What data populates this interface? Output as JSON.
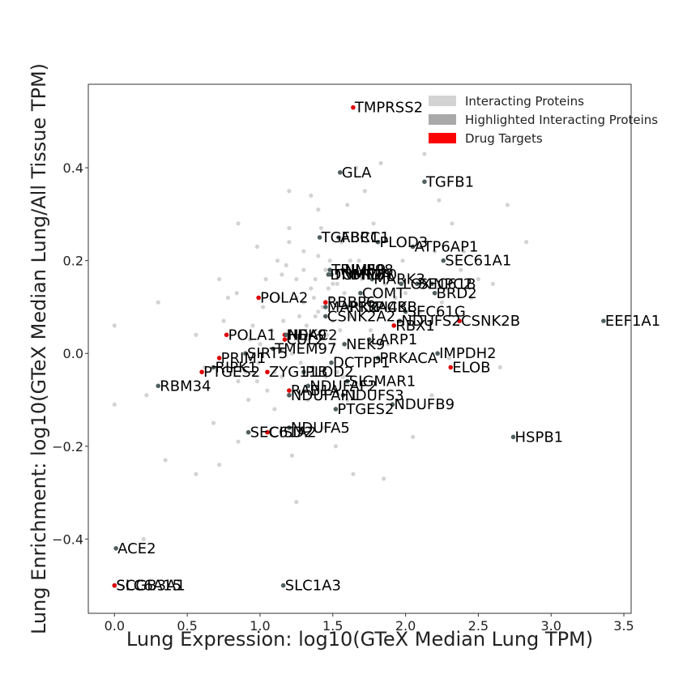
{
  "chart_data": {
    "type": "scatter",
    "title": "",
    "xlabel": "Lung Expression: log10(GTeX Median Lung TPM)",
    "ylabel": "Lung Enrichment: log10(GTeX Median Lung/All Tissue TPM)",
    "xlim": [
      -0.18,
      3.55
    ],
    "ylim": [
      -0.56,
      0.58
    ],
    "xticks": [
      "0.0",
      "0.5",
      "1.0",
      "1.5",
      "2.0",
      "2.5",
      "3.0",
      "3.5"
    ],
    "xtick_values": [
      0,
      0.5,
      1.0,
      1.5,
      2.0,
      2.5,
      3.0,
      3.5
    ],
    "yticks": [
      "−0.4",
      "−0.2",
      "0.0",
      "0.2",
      "0.4"
    ],
    "ytick_values": [
      -0.4,
      -0.2,
      0.0,
      0.2,
      0.4
    ],
    "grid": false,
    "legend_position": "top-right",
    "legend": [
      {
        "label": "Interacting Proteins",
        "color": "#d3d3d3"
      },
      {
        "label": "Highlighted Interacting Proteins",
        "color": "#a9a9a9"
      },
      {
        "label": "Drug Targets",
        "color": "#ff0000"
      }
    ],
    "colors": {
      "background": "#d3d3d3",
      "highlighted": "#506060",
      "drug": "#e00000"
    },
    "background_points": [
      [
        0.0,
        0.06
      ],
      [
        0.0,
        -0.11
      ],
      [
        0.3,
        0.11
      ],
      [
        0.22,
        -0.09
      ],
      [
        0.35,
        -0.23
      ],
      [
        0.2,
        -0.4
      ],
      [
        0.72,
        0.16
      ],
      [
        0.75,
        0.07
      ],
      [
        0.56,
        0.04
      ],
      [
        0.62,
        -0.03
      ],
      [
        0.68,
        -0.15
      ],
      [
        0.72,
        -0.24
      ],
      [
        0.56,
        -0.26
      ],
      [
        0.85,
        -0.19
      ],
      [
        0.85,
        -0.06
      ],
      [
        0.84,
        0.13
      ],
      [
        0.85,
        0.28
      ],
      [
        0.92,
        -0.1
      ],
      [
        0.95,
        0.06
      ],
      [
        0.98,
        -0.06
      ],
      [
        0.99,
        -0.02
      ],
      [
        1.0,
        0.02
      ],
      [
        1.02,
        0.1
      ],
      [
        1.04,
        0.16
      ],
      [
        1.05,
        -0.08
      ],
      [
        1.08,
        0.05
      ],
      [
        1.1,
        -0.12
      ],
      [
        1.12,
        0.2
      ],
      [
        1.13,
        0.12
      ],
      [
        1.15,
        0.01
      ],
      [
        1.16,
        0.07
      ],
      [
        1.18,
        0.19
      ],
      [
        1.2,
        0.27
      ],
      [
        1.22,
        -0.22
      ],
      [
        1.25,
        -0.32
      ],
      [
        1.25,
        0.12
      ],
      [
        1.27,
        0.08
      ],
      [
        1.28,
        -0.02
      ],
      [
        1.3,
        0.11
      ],
      [
        1.32,
        0.03
      ],
      [
        1.33,
        -0.1
      ],
      [
        1.35,
        0.14
      ],
      [
        1.36,
        -0.03
      ],
      [
        1.38,
        0.08
      ],
      [
        1.4,
        0.09
      ],
      [
        1.4,
        0.21
      ],
      [
        1.42,
        0.27
      ],
      [
        1.43,
        0.1
      ],
      [
        1.44,
        -0.16
      ],
      [
        1.45,
        -0.05
      ],
      [
        1.46,
        0.04
      ],
      [
        1.47,
        0.14
      ],
      [
        1.48,
        0.2
      ],
      [
        1.49,
        0.12
      ],
      [
        1.5,
        0.07
      ],
      [
        1.51,
        0.02
      ],
      [
        1.52,
        -0.2
      ],
      [
        1.53,
        0.15
      ],
      [
        1.54,
        0.1
      ],
      [
        1.55,
        0.05
      ],
      [
        1.56,
        0.24
      ],
      [
        1.57,
        -0.05
      ],
      [
        1.58,
        0.13
      ],
      [
        1.6,
        -0.1
      ],
      [
        1.62,
        0.08
      ],
      [
        1.64,
        -0.26
      ],
      [
        1.66,
        0.4
      ],
      [
        1.68,
        0.2
      ],
      [
        1.7,
        0.16
      ],
      [
        1.72,
        0.35
      ],
      [
        1.74,
        0.11
      ],
      [
        1.76,
        0.05
      ],
      [
        1.78,
        0.28
      ],
      [
        1.8,
        0.1
      ],
      [
        1.83,
        0.41
      ],
      [
        1.85,
        -0.27
      ],
      [
        1.86,
        0.15
      ],
      [
        1.88,
        0.02
      ],
      [
        1.9,
        0.18
      ],
      [
        1.93,
        0.12
      ],
      [
        1.95,
        0.07
      ],
      [
        1.98,
        0.2
      ],
      [
        2.0,
        0.13
      ],
      [
        2.05,
        -0.18
      ],
      [
        2.1,
        0.09
      ],
      [
        2.13,
        0.43
      ],
      [
        2.18,
        -0.09
      ],
      [
        2.2,
        0.22
      ],
      [
        2.23,
        0.33
      ],
      [
        2.25,
        0.11
      ],
      [
        2.28,
        0.14
      ],
      [
        2.3,
        -0.01
      ],
      [
        2.32,
        0.28
      ],
      [
        2.38,
        0.18
      ],
      [
        2.4,
        0.22
      ],
      [
        2.45,
        0.12
      ],
      [
        2.5,
        0.16
      ],
      [
        2.6,
        0.15
      ],
      [
        2.65,
        -0.03
      ],
      [
        2.7,
        0.32
      ],
      [
        2.83,
        0.24
      ],
      [
        1.2,
        0.35
      ],
      [
        1.35,
        0.34
      ],
      [
        1.4,
        0.31
      ],
      [
        1.3,
        0.22
      ],
      [
        1.15,
        0.17
      ],
      [
        1.25,
        0.16
      ],
      [
        1.45,
        0.18
      ],
      [
        1.5,
        0.15
      ],
      [
        1.6,
        0.32
      ],
      [
        1.78,
        0.09
      ],
      [
        1.15,
        -0.05
      ],
      [
        1.05,
        0.0
      ],
      [
        0.93,
        0.03
      ],
      [
        1.2,
        0.24
      ],
      [
        1.32,
        0.06
      ],
      [
        1.42,
        -0.08
      ],
      [
        1.53,
        -0.04
      ],
      [
        1.62,
        0.2
      ],
      [
        1.38,
        0.16
      ],
      [
        1.3,
        0.18
      ],
      [
        0.98,
        0.23
      ],
      [
        0.78,
        0.12
      ],
      [
        0.9,
        -0.04
      ],
      [
        1.1,
        -0.04
      ],
      [
        1.22,
        0.0
      ],
      [
        1.37,
        0.12
      ]
    ],
    "labeled_points": [
      {
        "label": "TMPRSS2",
        "x": 1.64,
        "y": 0.53,
        "kind": "drug"
      },
      {
        "label": "GLA",
        "x": 1.55,
        "y": 0.39,
        "kind": "highlighted"
      },
      {
        "label": "TGFB1",
        "x": 2.13,
        "y": 0.37,
        "kind": "highlighted"
      },
      {
        "label": "TGFBR1",
        "x": 1.41,
        "y": 0.25,
        "kind": "highlighted"
      },
      {
        "label": "ABCC1",
        "x": 1.54,
        "y": 0.25,
        "kind": "highlighted"
      },
      {
        "label": "PLOD3",
        "x": 1.81,
        "y": 0.24,
        "kind": "highlighted"
      },
      {
        "label": "ATP6AP1",
        "x": 2.05,
        "y": 0.23,
        "kind": "highlighted"
      },
      {
        "label": "SEC61A1",
        "x": 2.26,
        "y": 0.2,
        "kind": "highlighted"
      },
      {
        "label": "TRIM59",
        "x": 1.48,
        "y": 0.18,
        "kind": "highlighted"
      },
      {
        "label": "TOMM70",
        "x": 1.49,
        "y": 0.17,
        "kind": "highlighted"
      },
      {
        "label": "NUP98",
        "x": 1.57,
        "y": 0.18,
        "kind": "highlighted"
      },
      {
        "label": "DNMT1",
        "x": 1.47,
        "y": 0.17,
        "kind": "highlighted"
      },
      {
        "label": "BRD4",
        "x": 1.61,
        "y": 0.17,
        "kind": "highlighted"
      },
      {
        "label": "MARK3",
        "x": 1.77,
        "y": 0.16,
        "kind": "highlighted"
      },
      {
        "label": "LOX",
        "x": 1.97,
        "y": 0.15,
        "kind": "highlighted"
      },
      {
        "label": "SEC61B",
        "x": 2.08,
        "y": 0.15,
        "kind": "highlighted"
      },
      {
        "label": "NPC2",
        "x": 2.18,
        "y": 0.15,
        "kind": "highlighted"
      },
      {
        "label": "COMT",
        "x": 1.69,
        "y": 0.13,
        "kind": "highlighted"
      },
      {
        "label": "BRD2",
        "x": 2.2,
        "y": 0.13,
        "kind": "highlighted"
      },
      {
        "label": "POLA2",
        "x": 0.99,
        "y": 0.12,
        "kind": "drug"
      },
      {
        "label": "RBBP6",
        "x": 1.45,
        "y": 0.11,
        "kind": "drug"
      },
      {
        "label": "MARK2",
        "x": 1.45,
        "y": 0.1,
        "kind": "highlighted"
      },
      {
        "label": "PRKACB",
        "x": 1.6,
        "y": 0.1,
        "kind": "highlighted"
      },
      {
        "label": "PI4KB",
        "x": 1.78,
        "y": 0.1,
        "kind": "highlighted"
      },
      {
        "label": "CSNK2A2",
        "x": 1.45,
        "y": 0.08,
        "kind": "highlighted"
      },
      {
        "label": "SEC61G",
        "x": 2.0,
        "y": 0.09,
        "kind": "highlighted"
      },
      {
        "label": "NDUFS2",
        "x": 1.96,
        "y": 0.07,
        "kind": "highlighted"
      },
      {
        "label": "RBX1",
        "x": 1.92,
        "y": 0.06,
        "kind": "drug"
      },
      {
        "label": "CSNK2B",
        "x": 2.37,
        "y": 0.07,
        "kind": "drug"
      },
      {
        "label": "EEF1A1",
        "x": 3.36,
        "y": 0.07,
        "kind": "highlighted"
      },
      {
        "label": "POLA1",
        "x": 0.77,
        "y": 0.04,
        "kind": "drug"
      },
      {
        "label": "HDAC2",
        "x": 1.17,
        "y": 0.04,
        "kind": "drug"
      },
      {
        "label": "NEK9",
        "x": 1.18,
        "y": 0.04,
        "kind": "highlighted"
      },
      {
        "label": "CUL2",
        "x": 1.17,
        "y": 0.03,
        "kind": "drug"
      },
      {
        "label": "NEK9",
        "x": 1.58,
        "y": 0.02,
        "kind": "highlighted"
      },
      {
        "label": "LARP1",
        "x": 1.75,
        "y": 0.03,
        "kind": "highlighted"
      },
      {
        "label": "TMEM97",
        "x": 1.09,
        "y": 0.01,
        "kind": "highlighted"
      },
      {
        "label": "SIRT5",
        "x": 0.9,
        "y": 0.0,
        "kind": "highlighted"
      },
      {
        "label": "IMPDH2",
        "x": 2.22,
        "y": 0.0,
        "kind": "highlighted"
      },
      {
        "label": "PRIM1",
        "x": 0.72,
        "y": -0.01,
        "kind": "drug"
      },
      {
        "label": "PRKACA",
        "x": 1.81,
        "y": -0.01,
        "kind": "highlighted"
      },
      {
        "label": "DCTPP1",
        "x": 1.49,
        "y": -0.02,
        "kind": "highlighted"
      },
      {
        "label": "ELOB",
        "x": 2.31,
        "y": -0.03,
        "kind": "drug"
      },
      {
        "label": "PTGES2",
        "x": 0.6,
        "y": -0.04,
        "kind": "drug"
      },
      {
        "label": "RIPK1",
        "x": 0.68,
        "y": -0.03,
        "kind": "highlighted"
      },
      {
        "label": "ZYG11B",
        "x": 1.05,
        "y": -0.04,
        "kind": "drug"
      },
      {
        "label": "PLOD2",
        "x": 1.3,
        "y": -0.04,
        "kind": "highlighted"
      },
      {
        "label": "SIGMAR1",
        "x": 1.6,
        "y": -0.06,
        "kind": "highlighted"
      },
      {
        "label": "RBM34",
        "x": 0.3,
        "y": -0.07,
        "kind": "highlighted"
      },
      {
        "label": "NDUFAF2",
        "x": 1.33,
        "y": -0.07,
        "kind": "highlighted"
      },
      {
        "label": "RAB1A",
        "x": 1.2,
        "y": -0.08,
        "kind": "drug"
      },
      {
        "label": "NDUFAF1",
        "x": 1.2,
        "y": -0.09,
        "kind": "highlighted"
      },
      {
        "label": "NDUFS3",
        "x": 1.57,
        "y": -0.09,
        "kind": "highlighted"
      },
      {
        "label": "NDUFB9",
        "x": 1.91,
        "y": -0.11,
        "kind": "highlighted"
      },
      {
        "label": "PTGES2",
        "x": 1.52,
        "y": -0.12,
        "kind": "highlighted"
      },
      {
        "label": "NDUFA5",
        "x": 1.2,
        "y": -0.16,
        "kind": "highlighted"
      },
      {
        "label": "SEC61A2",
        "x": 0.92,
        "y": -0.17,
        "kind": "highlighted"
      },
      {
        "label": "CISD2",
        "x": 1.05,
        "y": -0.17,
        "kind": "drug"
      },
      {
        "label": "HSPB1",
        "x": 2.74,
        "y": -0.18,
        "kind": "highlighted"
      },
      {
        "label": "ACE2",
        "x": 0.01,
        "y": -0.42,
        "kind": "highlighted"
      },
      {
        "label": "SLC6A15",
        "x": 0.0,
        "y": -0.5,
        "kind": "highlighted"
      },
      {
        "label": "SCGB3A1",
        "x": 0.0,
        "y": -0.5,
        "kind": "drug"
      },
      {
        "label": "SLC1A3",
        "x": 1.16,
        "y": -0.5,
        "kind": "highlighted"
      }
    ]
  }
}
